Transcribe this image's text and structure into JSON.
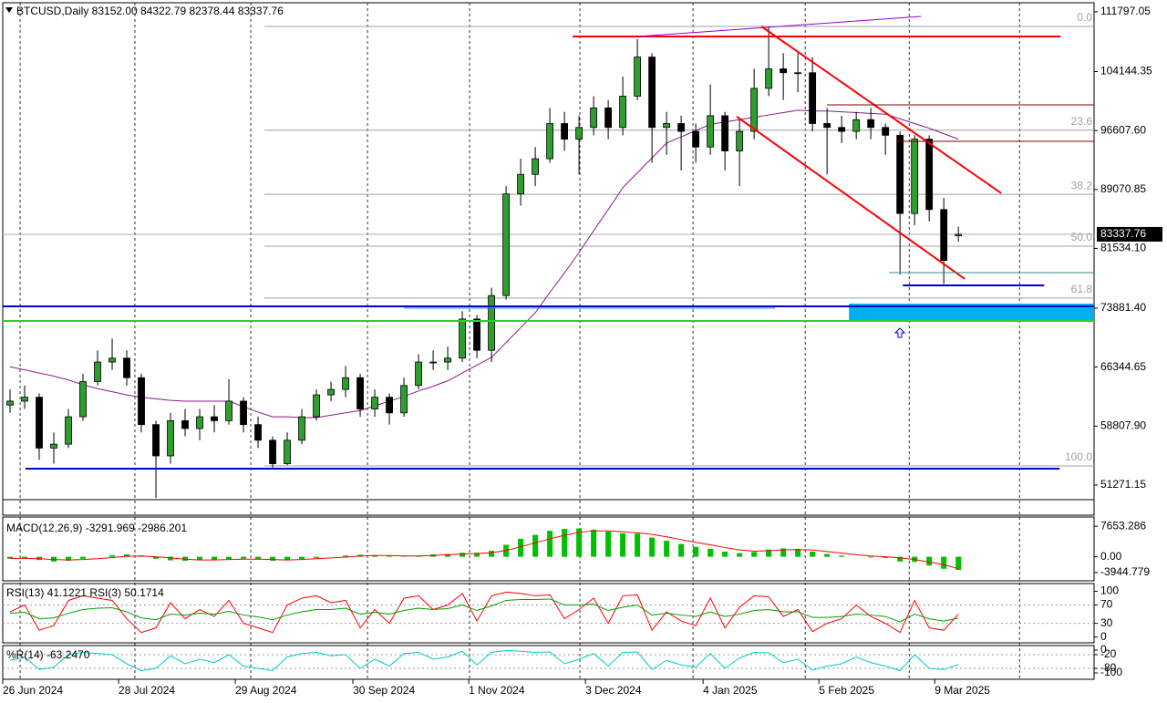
{
  "header": "BTCUSD,Daily  83152.00 84322.79 82378.44 83337.76",
  "chart_data": {
    "type": "candlestick",
    "xlim": [
      -0.5,
      74.3
    ],
    "xticks": [
      {
        "value": -0.5,
        "label": "26 Jun 2024"
      },
      {
        "value": 7.44,
        "label": "28 Jul 2024"
      },
      {
        "value": 15.44,
        "label": "29 Aug 2024"
      },
      {
        "value": 23.5,
        "label": "30 Sep 2024"
      },
      {
        "value": 31.44,
        "label": "1 Nov 2024"
      },
      {
        "value": 39.44,
        "label": "3 Dec 2024"
      },
      {
        "value": 47.5,
        "label": "4 Jan 2025"
      },
      {
        "value": 55.44,
        "label": "5 Feb 2025"
      },
      {
        "value": 63.38,
        "label": "9 Mar 2025"
      }
    ],
    "xgrid": [
      0.69,
      8.56,
      16.5,
      24.5,
      31.5,
      39.06,
      46.81,
      54.5,
      61.63,
      69.19
    ],
    "ylim": [
      49400,
      112950
    ],
    "yticks": [
      {
        "value": 111797.05,
        "label": "111797.05"
      },
      {
        "value": 104144.35,
        "label": "104144.35"
      },
      {
        "value": 96607.6,
        "label": "96607.60"
      },
      {
        "value": 89070.85,
        "label": "89070.85"
      },
      {
        "value": 81534.1,
        "label": "81534.10"
      },
      {
        "value": 73881.4,
        "label": "73881.40"
      },
      {
        "value": 66344.65,
        "label": "66344.65"
      },
      {
        "value": 58807.9,
        "label": "58807.90"
      },
      {
        "value": 51271.15,
        "label": "51271.15"
      }
    ],
    "grid": true,
    "up_color": "#2e9e2e",
    "down_color": "#000000",
    "open": [
      61500,
      62000,
      62500,
      56000,
      56500,
      60000,
      64500,
      67000,
      67500,
      65000,
      59000,
      55000,
      59500,
      58500,
      60000,
      59500,
      62000,
      59000,
      57000,
      54000,
      57000,
      60000,
      62800,
      63500,
      65000,
      61000,
      62500,
      60500,
      64000,
      67000,
      67000,
      67500,
      72500,
      68500,
      75500,
      88500,
      91000,
      93000,
      97500,
      95500,
      97000,
      99500,
      97000,
      101000,
      106000,
      97000,
      97500,
      96500,
      94500,
      98500,
      94000,
      96500,
      102000,
      104500,
      104000,
      104000,
      97500,
      97000,
      96500,
      98000,
      97000,
      96000,
      86000,
      95500,
      86500,
      83152
    ],
    "high": [
      63500,
      64000,
      63000,
      58000,
      61000,
      65500,
      68500,
      70000,
      68500,
      65500,
      59500,
      60500,
      61000,
      61000,
      61500,
      64800,
      62500,
      60000,
      57500,
      58000,
      61000,
      63500,
      64500,
      66500,
      65500,
      63500,
      63000,
      65000,
      68000,
      68500,
      69000,
      73500,
      73000,
      76500,
      89500,
      93000,
      94500,
      99500,
      99000,
      98500,
      101000,
      100500,
      103500,
      108300,
      106500,
      99000,
      98500,
      97500,
      102500,
      99000,
      98000,
      104500,
      109900,
      106500,
      106500,
      106000,
      99500,
      98500,
      99000,
      99500,
      97500,
      96500,
      96000,
      96000,
      88000,
      84322.79
    ],
    "low": [
      60500,
      61000,
      54500,
      54000,
      56000,
      59500,
      64000,
      66000,
      64000,
      58000,
      49600,
      54000,
      57500,
      57000,
      58000,
      59000,
      58000,
      56000,
      53500,
      53800,
      56500,
      59500,
      62000,
      62500,
      60000,
      60000,
      59000,
      60000,
      63500,
      66000,
      66000,
      67000,
      67500,
      67000,
      75000,
      87000,
      89500,
      92500,
      94000,
      91000,
      96000,
      95500,
      96000,
      100500,
      92500,
      93500,
      91500,
      92500,
      93500,
      91500,
      89500,
      95500,
      101000,
      100500,
      101500,
      96500,
      91000,
      95000,
      95500,
      95500,
      93500,
      78200,
      84500,
      85000,
      77000,
      82378.44
    ],
    "close": [
      62000,
      62500,
      56000,
      56500,
      60000,
      64500,
      67000,
      67500,
      65000,
      59000,
      55000,
      59500,
      58500,
      60000,
      59500,
      62000,
      59000,
      57000,
      54000,
      57000,
      60000,
      62800,
      63500,
      65000,
      61000,
      62500,
      60500,
      64000,
      67000,
      67000,
      67500,
      72500,
      68500,
      75500,
      88500,
      91000,
      93000,
      97500,
      95500,
      97000,
      99500,
      97000,
      101000,
      106000,
      97000,
      97500,
      96500,
      94500,
      98500,
      94000,
      96500,
      102000,
      104500,
      104000,
      104000,
      97500,
      97000,
      96500,
      98000,
      97000,
      96000,
      86000,
      95500,
      86500,
      80000,
      83337.76
    ],
    "ma": {
      "color": "#8b1a8b",
      "values": [
        66400,
        66000,
        65600,
        65200,
        64700,
        64100,
        63600,
        63200,
        62800,
        62500,
        62300,
        62100,
        62000,
        62000,
        62000,
        62000,
        61300,
        60600,
        60000,
        60000,
        59900,
        59900,
        60200,
        60500,
        60800,
        61400,
        62000,
        62600,
        63300,
        63900,
        64600,
        65600,
        66600,
        67600,
        69500,
        71400,
        73300,
        75900,
        78400,
        81000,
        83800,
        86500,
        89300,
        91200,
        93100,
        95000,
        95800,
        96600,
        97400,
        97700,
        98000,
        98300,
        98600,
        98900,
        99200,
        99100,
        99100,
        99000,
        98900,
        98800,
        98700,
        98100,
        97500,
        96900,
        96200,
        95500
      ]
    },
    "fib_from": 17.44,
    "fib_color": "#a0a0a0",
    "fib_levels": [
      {
        "label": "0.0",
        "price": 109918
      },
      {
        "label": "23.6",
        "price": 96654
      },
      {
        "label": "38.2",
        "price": 88448
      },
      {
        "label": "50.0",
        "price": 81816
      },
      {
        "label": "61.8",
        "price": 75184
      },
      {
        "label": "100.0",
        "price": 53714
      }
    ],
    "zone": {
      "from": [
        57.5,
        74470
      ],
      "to": [
        74.3,
        72255
      ],
      "color": "#00b0f0"
    },
    "lines": [
      {
        "from": [
          38.56,
          108640
        ],
        "to": [
          72,
          108640
        ],
        "color": "#ff0000",
        "width": 2
      },
      {
        "from": [
          43.06,
          108638
        ],
        "to": [
          62.44,
          111203
        ],
        "color": "#9400d3",
        "width": 1
      },
      {
        "from": [
          51.5,
          109918
        ],
        "to": [
          67.94,
          88581
        ],
        "color": "#ff0000",
        "width": 2
      },
      {
        "from": [
          49.81,
          98376
        ],
        "to": [
          65.44,
          77619
        ],
        "color": "#ff0000",
        "width": 2
      },
      {
        "from": [
          1.06,
          53365
        ],
        "to": [
          71.94,
          53365
        ],
        "color": "#0000cd",
        "width": 2
      },
      {
        "from": [
          -0.5,
          74121
        ],
        "to": [
          74.3,
          74121
        ],
        "color": "#0000cd",
        "width": 2
      },
      {
        "from": [
          -0.5,
          72255
        ],
        "to": [
          74.3,
          72255
        ],
        "color": "#32cd32",
        "width": 2
      },
      {
        "from": [
          27,
          73888
        ],
        "to": [
          52.44,
          73888
        ],
        "color": "#1e90ff",
        "width": 1
      },
      {
        "from": [
          61.19,
          76803
        ],
        "to": [
          70.88,
          76803
        ],
        "color": "#0000cd",
        "width": 2
      },
      {
        "from": [
          60.25,
          78436
        ],
        "to": [
          74.3,
          78436
        ],
        "color": "#2f8f8f",
        "width": 1
      },
      {
        "from": [
          56,
          99890
        ],
        "to": [
          74.3,
          99890
        ],
        "color": "#800000",
        "width": 1
      },
      {
        "from": [
          60.75,
          95228
        ],
        "to": [
          74.3,
          95228
        ],
        "color": "#800000",
        "width": 1
      }
    ]
  },
  "indicators": {
    "macd": {
      "title": "MACD(12,26,9) -3291.969 -2986.201",
      "ylim": [
        -6033,
        9973
      ],
      "yticks": [
        7653.286,
        {
          "value": 0,
          "label": "0.00"
        },
        -3944.779
      ],
      "hist": {
        "color": "#00c000",
        "values": [
          -500,
          -300,
          -800,
          -1200,
          -1000,
          -500,
          0,
          400,
          600,
          300,
          -500,
          -900,
          -1000,
          -900,
          -800,
          -600,
          -500,
          -700,
          -1000,
          -900,
          -600,
          -300,
          0,
          300,
          500,
          300,
          200,
          100,
          300,
          600,
          700,
          1000,
          1000,
          1500,
          3000,
          4500,
          5500,
          6500,
          7000,
          7100,
          6800,
          6300,
          5900,
          5800,
          4800,
          4000,
          3200,
          2500,
          2000,
          1300,
          900,
          1200,
          1800,
          2100,
          2000,
          1300,
          700,
          300,
          0,
          -200,
          -300,
          -1200,
          -1300,
          -2200,
          -3000,
          -3291.969
        ]
      },
      "signal": {
        "color": "#ff0000",
        "values": [
          -400,
          -400,
          -500,
          -700,
          -800,
          -700,
          -500,
          -200,
          100,
          200,
          0,
          -300,
          -600,
          -800,
          -800,
          -700,
          -600,
          -600,
          -700,
          -800,
          -700,
          -500,
          -300,
          -100,
          200,
          300,
          300,
          200,
          200,
          300,
          500,
          700,
          800,
          1000,
          1600,
          2500,
          3500,
          4500,
          5400,
          6100,
          6500,
          6500,
          6300,
          6000,
          5600,
          5000,
          4300,
          3600,
          3000,
          2300,
          1700,
          1400,
          1500,
          1700,
          1800,
          1700,
          1300,
          900,
          500,
          200,
          0,
          -300,
          -700,
          -1300,
          -2000,
          -2986.201
        ]
      }
    },
    "rsi": {
      "title": "RSI(13) 41.1221  RSI(3) 50.1714",
      "ylim": [
        -12.5,
        116.7
      ],
      "yticks": [
        100,
        70,
        30,
        0
      ],
      "levels": [
        70,
        30
      ],
      "series": [
        {
          "color": "#ff0000",
          "values": [
            55,
            70,
            15,
            25,
            80,
            90,
            85,
            80,
            40,
            10,
            20,
            75,
            40,
            60,
            45,
            80,
            30,
            20,
            10,
            70,
            85,
            90,
            75,
            80,
            20,
            60,
            30,
            85,
            90,
            60,
            70,
            95,
            35,
            90,
            98,
            95,
            90,
            92,
            40,
            60,
            85,
            30,
            90,
            92,
            15,
            55,
            35,
            25,
            85,
            20,
            65,
            90,
            88,
            45,
            60,
            12,
            30,
            40,
            70,
            45,
            30,
            10,
            80,
            20,
            15,
            50.1714
          ]
        },
        {
          "color": "#00a000",
          "values": [
            52,
            54,
            40,
            42,
            52,
            60,
            63,
            64,
            55,
            42,
            38,
            50,
            48,
            52,
            50,
            56,
            48,
            44,
            38,
            48,
            55,
            60,
            60,
            63,
            50,
            54,
            50,
            58,
            63,
            60,
            62,
            70,
            58,
            68,
            80,
            82,
            82,
            83,
            70,
            70,
            72,
            58,
            65,
            70,
            48,
            52,
            48,
            45,
            55,
            45,
            50,
            58,
            60,
            55,
            55,
            43,
            43,
            45,
            50,
            48,
            45,
            33,
            50,
            40,
            35,
            41.1221
          ]
        }
      ]
    },
    "wr": {
      "title": "%R(14) -63.2470",
      "ylim": [
        -128,
        20
      ],
      "yticks": [
        0,
        -20,
        -80,
        -100
      ],
      "levels": [
        -20,
        -80
      ],
      "series": [
        {
          "color": "#00cccc",
          "values": [
            -45,
            -30,
            -85,
            -75,
            -20,
            -10,
            -15,
            -20,
            -60,
            -90,
            -80,
            -25,
            -60,
            -40,
            -55,
            -20,
            -70,
            -80,
            -90,
            -30,
            -15,
            -10,
            -25,
            -20,
            -80,
            -40,
            -70,
            -15,
            -10,
            -40,
            -30,
            -5,
            -65,
            -10,
            -2,
            -5,
            -10,
            -8,
            -60,
            -40,
            -15,
            -70,
            -10,
            -8,
            -85,
            -45,
            -65,
            -75,
            -15,
            -80,
            -35,
            -10,
            -12,
            -55,
            -40,
            -88,
            -70,
            -60,
            -30,
            -55,
            -70,
            -90,
            -20,
            -80,
            -85,
            -63.247
          ]
        }
      ]
    }
  }
}
